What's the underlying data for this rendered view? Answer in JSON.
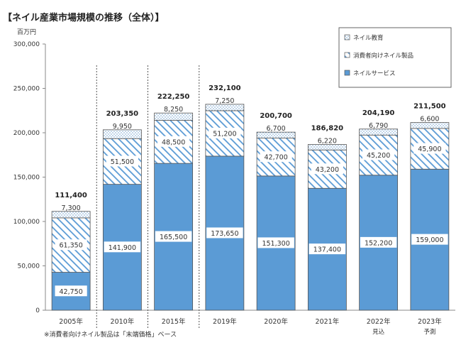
{
  "title": "【ネイル産業市場規模の推移（全体）】",
  "note": "※消費者向けネイル製品は「末端価格」ベース",
  "colors": {
    "service": "#5b9bd5",
    "consumer_stripe": "#5b9bd5",
    "education_dot": "#5b9bd5",
    "axis": "#888888",
    "grid": "#d9d9d9"
  },
  "chart_data": {
    "type": "bar",
    "stacked": true,
    "ylabel": "百万円",
    "ylim": [
      0,
      300000
    ],
    "yticks": [
      0,
      50000,
      100000,
      150000,
      200000,
      250000,
      300000
    ],
    "ytick_labels": [
      "0",
      "50,000",
      "100,000",
      "150,000",
      "200,000",
      "250,000",
      "300,000"
    ],
    "categories": [
      "2005年",
      "2010年",
      "2015年",
      "2019年",
      "2020年",
      "2021年",
      "2022年",
      "2023年"
    ],
    "sublabels": [
      "",
      "",
      "",
      "",
      "",
      "",
      "見込",
      "予測"
    ],
    "series": [
      {
        "name": "ネイルサービス",
        "pattern": "solid",
        "values": [
          42750,
          141900,
          165500,
          173650,
          151300,
          137400,
          152200,
          159000
        ],
        "labels": [
          "42,750",
          "141,900",
          "165,500",
          "173,650",
          "151,300",
          "137,400",
          "152,200",
          "159,000"
        ]
      },
      {
        "name": "消費者向けネイル製品",
        "pattern": "stripe",
        "values": [
          61350,
          51500,
          48500,
          51200,
          42700,
          43200,
          45200,
          45900
        ],
        "labels": [
          "61,350",
          "51,500",
          "48,500",
          "51,200",
          "42,700",
          "43,200",
          "45,200",
          "45,900"
        ]
      },
      {
        "name": "ネイル教育",
        "pattern": "dots",
        "values": [
          7300,
          9950,
          8250,
          7250,
          6700,
          6220,
          6790,
          6600
        ],
        "labels": [
          "7,300",
          "9,950",
          "8,250",
          "7,250",
          "6,700",
          "6,220",
          "6,790",
          "6,600"
        ]
      }
    ],
    "totals": [
      111400,
      203350,
      222250,
      232100,
      200700,
      186820,
      204190,
      211500
    ],
    "total_labels": [
      "111,400",
      "203,350",
      "222,250",
      "232,100",
      "200,700",
      "186,820",
      "204,190",
      "211,500"
    ],
    "legend": {
      "position": "top-right",
      "order": [
        "ネイル教育",
        "消費者向けネイル製品",
        "ネイルサービス"
      ]
    },
    "grid": false
  }
}
